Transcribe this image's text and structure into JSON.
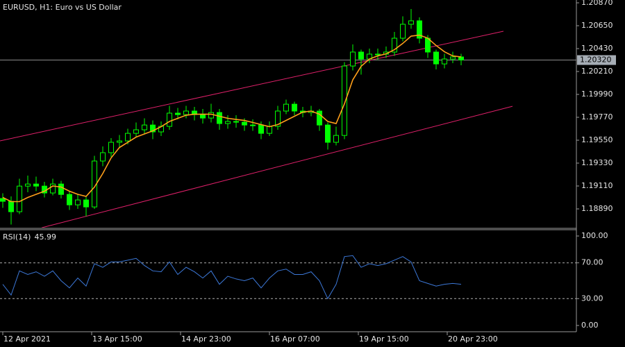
{
  "chart_data": [
    {
      "type": "candlestick",
      "title": "EURUSD, H1:  Euro vs US Dollar",
      "color": "#00ff00",
      "x": [
        0,
        3,
        6,
        9,
        12,
        15,
        18,
        21,
        24,
        27,
        30,
        33,
        36,
        39,
        42,
        45,
        48,
        51,
        54,
        57,
        60,
        63,
        66,
        69,
        72,
        75,
        78,
        81,
        84,
        87,
        90,
        93,
        96,
        99,
        102,
        105,
        108,
        111,
        114,
        117,
        120,
        123,
        126,
        129,
        132,
        135,
        138,
        141,
        144,
        147,
        150,
        153,
        156,
        159,
        162,
        165
      ],
      "open": [
        1.1899,
        1.18963,
        1.18863,
        1.19109,
        1.19129,
        1.19109,
        1.19043,
        1.19129,
        1.19029,
        1.18929,
        1.18976,
        1.18909,
        1.1935,
        1.1943,
        1.1953,
        1.19543,
        1.19616,
        1.1965,
        1.19696,
        1.1963,
        1.19683,
        1.1981,
        1.19796,
        1.1983,
        1.19796,
        1.19763,
        1.19816,
        1.1971,
        1.1973,
        1.19723,
        1.19696,
        1.19696,
        1.19616,
        1.19683,
        1.1983,
        1.19896,
        1.1983,
        1.19816,
        1.1983,
        1.19696,
        1.1953,
        1.19596,
        1.20263,
        1.20397,
        1.2033,
        1.20377,
        1.20377,
        1.20397,
        1.2053,
        1.20664,
        1.20697,
        1.2053,
        1.20397,
        1.20283,
        1.2033,
        1.2035
      ],
      "high": [
        1.1904,
        1.1901,
        1.1918,
        1.1921,
        1.192,
        1.1915,
        1.1918,
        1.1916,
        1.1906,
        1.1903,
        1.1901,
        1.194,
        1.1949,
        1.1957,
        1.196,
        1.1966,
        1.1972,
        1.1976,
        1.1974,
        1.1973,
        1.1988,
        1.1986,
        1.1988,
        1.1987,
        1.1985,
        1.199,
        1.1985,
        1.1979,
        1.1979,
        1.1976,
        1.1975,
        1.1973,
        1.1973,
        1.1988,
        1.1994,
        1.1992,
        1.1987,
        1.1988,
        1.1985,
        1.1972,
        1.1968,
        1.203,
        1.2047,
        1.2042,
        1.2043,
        1.2043,
        1.2045,
        1.2059,
        1.2074,
        1.2081,
        1.2073,
        1.2056,
        1.2042,
        1.2038,
        1.204,
        1.2038
      ],
      "low": [
        1.189,
        1.1874,
        1.1884,
        1.1905,
        1.1906,
        1.19,
        1.1902,
        1.1899,
        1.1888,
        1.1889,
        1.1882,
        1.1889,
        1.193,
        1.1939,
        1.1948,
        1.1951,
        1.1958,
        1.1961,
        1.1956,
        1.1959,
        1.1965,
        1.1975,
        1.1976,
        1.1974,
        1.1971,
        1.1972,
        1.1965,
        1.1966,
        1.1967,
        1.1964,
        1.1964,
        1.1956,
        1.1959,
        1.1965,
        1.198,
        1.1979,
        1.1977,
        1.1978,
        1.1964,
        1.1946,
        1.195,
        1.1956,
        1.2022,
        1.2018,
        1.2029,
        1.2032,
        1.2034,
        1.2036,
        1.205,
        1.2062,
        1.2048,
        1.2034,
        1.2023,
        1.2024,
        1.2029,
        1.2027
      ],
      "close": [
        1.18963,
        1.18863,
        1.19109,
        1.19129,
        1.19109,
        1.19043,
        1.19129,
        1.19029,
        1.18929,
        1.18976,
        1.18909,
        1.1935,
        1.1943,
        1.1953,
        1.19543,
        1.19616,
        1.1965,
        1.19696,
        1.1963,
        1.19683,
        1.1981,
        1.19796,
        1.1983,
        1.19796,
        1.19763,
        1.19816,
        1.1971,
        1.1973,
        1.19723,
        1.19696,
        1.19696,
        1.19616,
        1.19683,
        1.1983,
        1.19896,
        1.1983,
        1.19816,
        1.1983,
        1.19696,
        1.1953,
        1.19596,
        1.20263,
        1.20397,
        1.2033,
        1.20377,
        1.20377,
        1.20397,
        1.2053,
        1.20664,
        1.20697,
        1.2053,
        1.20397,
        1.20283,
        1.2033,
        1.2035,
        1.2032
      ],
      "overlays": [
        {
          "color": "#ff9f1a",
          "values": [
            1.19,
            1.1896,
            1.1896,
            1.19,
            1.1903,
            1.1906,
            1.1911,
            1.191,
            1.1906,
            1.1903,
            1.1901,
            1.191,
            1.1923,
            1.1938,
            1.1948,
            1.1953,
            1.1958,
            1.1961,
            1.1964,
            1.1968,
            1.1973,
            1.1976,
            1.1979,
            1.198,
            1.198,
            1.198,
            1.1978,
            1.1976,
            1.1975,
            1.1974,
            1.1972,
            1.197,
            1.1968,
            1.197,
            1.1974,
            1.1978,
            1.1982,
            1.1983,
            1.198,
            1.1973,
            1.1971,
            1.199,
            1.2013,
            1.2026,
            1.2033,
            1.2036,
            1.2038,
            1.2042,
            1.2048,
            1.2055,
            1.2056,
            1.2053,
            1.2046,
            1.204,
            1.2036,
            1.2035
          ]
        }
      ],
      "channel": {
        "color": "#e0206a",
        "lines": [
          {
            "x": [
              -1,
              180.25
            ],
            "y": [
              1.19543,
              1.20597
            ]
          },
          {
            "x": [
              14,
              183.5
            ],
            "y": [
              1.18709,
              1.19876
            ]
          }
        ]
      },
      "current_price": {
        "value": 1.2032,
        "label": "1.20320"
      },
      "xlim": [
        -1,
        206.5
      ],
      "ylim": [
        1.1871,
        1.20897
      ],
      "xticks": [
        {
          "value": 0,
          "label": "12 Apr 2021"
        },
        {
          "value": 32,
          "label": "13 Apr 15:00"
        },
        {
          "value": 64,
          "label": "14 Apr 23:00"
        },
        {
          "value": 96,
          "label": "16 Apr 07:00"
        },
        {
          "value": 128,
          "label": "19 Apr 15:00"
        },
        {
          "value": 160,
          "label": "20 Apr 23:00"
        }
      ],
      "yticks": [
        {
          "value": 1.2087,
          "label": "1.20870"
        },
        {
          "value": 1.2065,
          "label": "1.20650"
        },
        {
          "value": 1.2043,
          "label": "1.20430"
        },
        {
          "value": 1.2021,
          "label": "1.20210"
        },
        {
          "value": 1.1999,
          "label": "1.19990"
        },
        {
          "value": 1.1977,
          "label": "1.19770"
        },
        {
          "value": 1.1955,
          "label": "1.19550"
        },
        {
          "value": 1.1933,
          "label": "1.19330"
        },
        {
          "value": 1.1911,
          "label": "1.19110"
        },
        {
          "value": 1.1889,
          "label": "1.18890"
        }
      ]
    },
    {
      "type": "line",
      "title": "RSI(14)",
      "color": "#3c78d8",
      "values": [
        46,
        34,
        61,
        57,
        60,
        55,
        61,
        50,
        42,
        53,
        44,
        69,
        65,
        71,
        71,
        73,
        75,
        67,
        61,
        60,
        71,
        57,
        65,
        60,
        53,
        61,
        46,
        55,
        52,
        50,
        53,
        42,
        53,
        61,
        63,
        57,
        57,
        60,
        50,
        30,
        46,
        77,
        78,
        65,
        69,
        67,
        69,
        73,
        77,
        71,
        50,
        47,
        44,
        46,
        47,
        45.99
      ],
      "levels": [
        70,
        30
      ],
      "ylim": [
        -7,
        107
      ],
      "yticks": [
        {
          "value": 100,
          "label": "100.00"
        },
        {
          "value": 70,
          "label": "70.00"
        },
        {
          "value": 30,
          "label": "30.00"
        },
        {
          "value": 0,
          "label": "0.00"
        }
      ]
    }
  ]
}
